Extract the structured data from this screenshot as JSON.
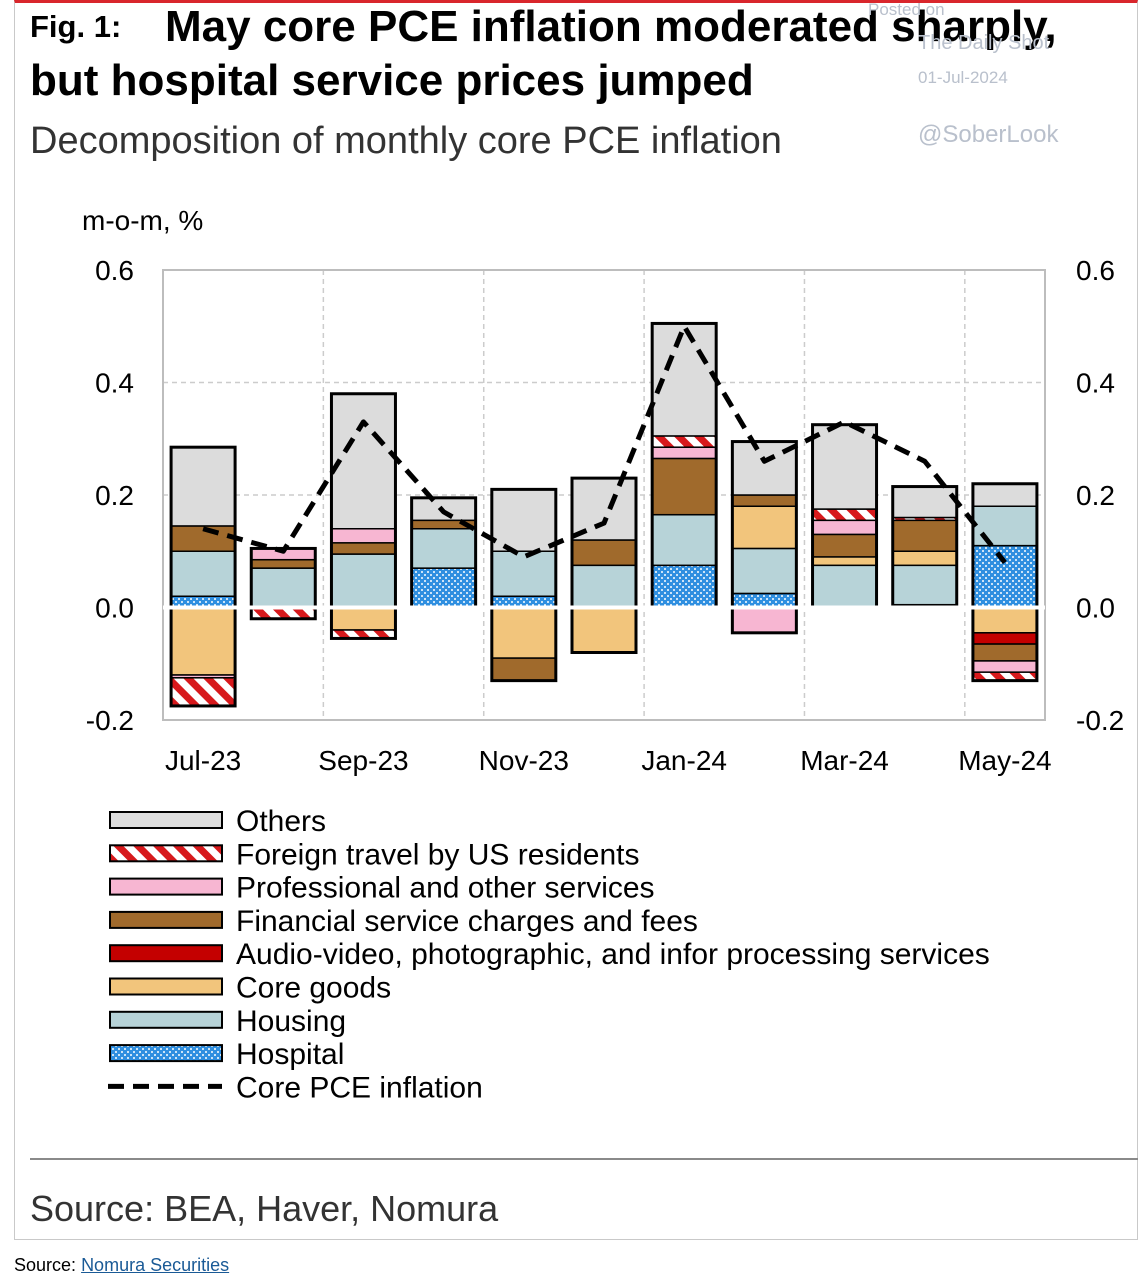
{
  "header": {
    "fig_label": "Fig. 1:",
    "title_line1": "May core PCE inflation moderated sharply,",
    "title_line2": "but hospital service prices jumped",
    "subtitle": "Decomposition of monthly core PCE inflation"
  },
  "watermark": {
    "posted_on": "Posted on",
    "site": "The Daily Shot",
    "date": "01-Jul-2024",
    "handle": "@SoberLook"
  },
  "footer": {
    "chart_source": "Source: BEA, Haver, Nomura",
    "page_source_label": "Source:",
    "page_source_link": "Nomura Securities"
  },
  "colors": {
    "others": "#dcdcdc",
    "foreign_travel": "#d7191c",
    "professional": "#f7b6d2",
    "financial": "#a06a2c",
    "audio_video": "#c40000",
    "core_goods": "#f2c57c",
    "housing": "#b7d3d8",
    "hospital": "#2f8fe0",
    "line": "#000000"
  },
  "chart_data": {
    "type": "bar",
    "stacked": true,
    "ylabel": "m-o-m, %",
    "ylim": [
      -0.2,
      0.6
    ],
    "yticks": [
      "0.6",
      "0.4",
      "0.2",
      "0.0",
      "-0.2"
    ],
    "categories": [
      "Jul-23",
      "Aug-23",
      "Sep-23",
      "Oct-23",
      "Nov-23",
      "Dec-23",
      "Jan-24",
      "Feb-24",
      "Mar-24",
      "Apr-24",
      "May-24"
    ],
    "xtick_labels": [
      "Jul-23",
      "Sep-23",
      "Nov-23",
      "Jan-24",
      "Mar-24",
      "May-24"
    ],
    "legend_position": "bottom",
    "series": [
      {
        "key": "hospital",
        "name": "Hospital",
        "pattern": "dots",
        "values": [
          0.02,
          0.0,
          0.0,
          0.07,
          0.02,
          0.0,
          0.075,
          0.025,
          0.0,
          0.005,
          0.11
        ]
      },
      {
        "key": "housing",
        "name": "Housing",
        "values": [
          0.08,
          0.07,
          0.095,
          0.07,
          0.08,
          0.075,
          0.09,
          0.08,
          0.075,
          0.07,
          0.07
        ]
      },
      {
        "key": "core_goods",
        "name": "Core goods",
        "values": [
          -0.12,
          0.0,
          -0.04,
          0.0,
          -0.09,
          -0.08,
          0.0,
          0.075,
          0.015,
          0.025,
          -0.045
        ]
      },
      {
        "key": "audio_video",
        "name": "Audio-video, photographic, and infor processing services",
        "values": [
          0.0,
          0.0,
          0.0,
          0.0,
          0.0,
          0.0,
          0.0,
          0.0,
          0.0,
          0.0,
          -0.02
        ]
      },
      {
        "key": "financial",
        "name": "Financial service charges and fees",
        "values": [
          0.045,
          0.015,
          0.02,
          0.015,
          -0.04,
          0.045,
          0.1,
          0.02,
          0.04,
          0.055,
          -0.03
        ]
      },
      {
        "key": "professional",
        "name": "Professional and other services",
        "values": [
          -0.005,
          0.02,
          0.025,
          0.0,
          0.0,
          0.0,
          0.02,
          -0.045,
          0.025,
          0.0,
          -0.02
        ]
      },
      {
        "key": "foreign_travel",
        "name": "Foreign travel by US residents",
        "pattern": "hatch",
        "values": [
          -0.05,
          -0.02,
          -0.015,
          0.0,
          0.0,
          0.0,
          0.02,
          0.0,
          0.02,
          0.005,
          -0.015
        ]
      },
      {
        "key": "others",
        "name": "Others",
        "values": [
          0.14,
          0.0,
          0.24,
          0.04,
          0.11,
          0.11,
          0.2,
          0.095,
          0.15,
          0.055,
          0.04
        ]
      }
    ],
    "line": {
      "name": "Core PCE inflation",
      "style": "dashed",
      "values": [
        0.14,
        0.1,
        0.33,
        0.17,
        0.09,
        0.15,
        0.5,
        0.26,
        0.33,
        0.26,
        0.08
      ]
    },
    "legend": [
      {
        "key": "others",
        "label": "Others"
      },
      {
        "key": "foreign_travel",
        "label": "Foreign travel by US residents"
      },
      {
        "key": "professional",
        "label": "Professional and other services"
      },
      {
        "key": "financial",
        "label": "Financial service charges and fees"
      },
      {
        "key": "audio_video",
        "label": "Audio-video, photographic, and infor processing services"
      },
      {
        "key": "core_goods",
        "label": "Core goods"
      },
      {
        "key": "housing",
        "label": "Housing"
      },
      {
        "key": "hospital",
        "label": "Hospital"
      },
      {
        "key": "line",
        "label": "Core PCE inflation"
      }
    ]
  }
}
